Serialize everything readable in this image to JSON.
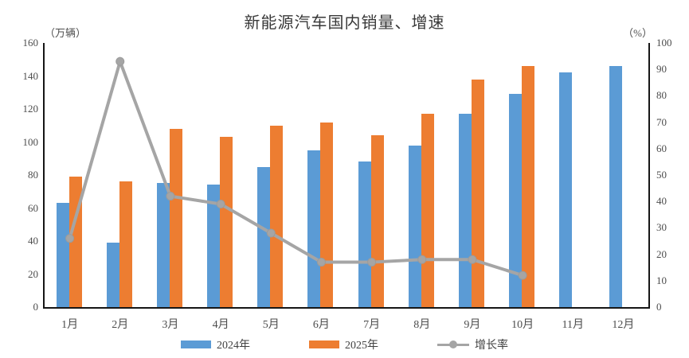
{
  "title": "新能源汽车国内销量、增速",
  "chart_data": {
    "type": "combo-bar-line",
    "title": "新能源汽车国内销量、增速",
    "categories": [
      "1月",
      "2月",
      "3月",
      "4月",
      "5月",
      "6月",
      "7月",
      "8月",
      "9月",
      "10月",
      "11月",
      "12月"
    ],
    "left_axis": {
      "unit": "（万辆）",
      "min": 0,
      "max": 160,
      "step": 20
    },
    "right_axis": {
      "unit": "（%）",
      "min": 0,
      "max": 100,
      "step": 10
    },
    "grid": false,
    "legend_position": "bottom",
    "series": [
      {
        "name": "2024年",
        "type": "bar",
        "axis": "left",
        "color": "#5B9BD5",
        "values": [
          63,
          39,
          75,
          74,
          85,
          95,
          88,
          98,
          117,
          129,
          142,
          146
        ]
      },
      {
        "name": "2025年",
        "type": "bar",
        "axis": "left",
        "color": "#ED7D31",
        "values": [
          79,
          76,
          108,
          103,
          110,
          112,
          104,
          117,
          138,
          146,
          null,
          null
        ]
      },
      {
        "name": "增长率",
        "type": "line",
        "axis": "right",
        "color": "#A5A5A5",
        "values": [
          26,
          93,
          42,
          39,
          28,
          17,
          17,
          18,
          18,
          12,
          null,
          null
        ]
      }
    ]
  }
}
